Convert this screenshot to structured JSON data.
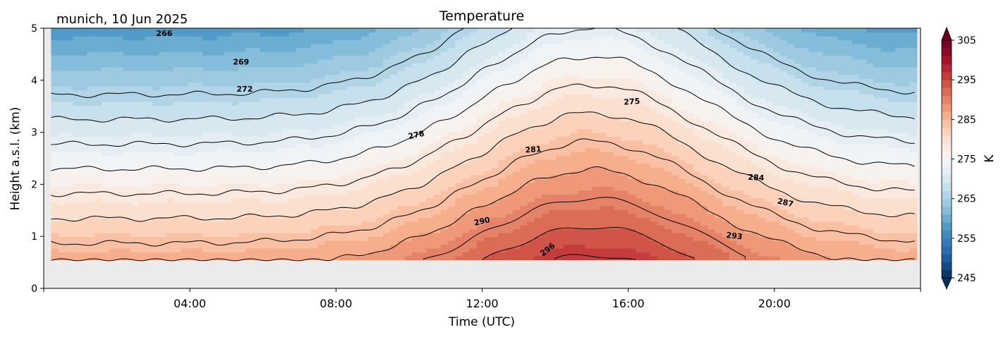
{
  "chart_data": {
    "type": "heatmap",
    "title": "Temperature",
    "subtitle": "munich, 10 Jun 2025",
    "xlabel": "Time (UTC)",
    "ylabel": "Height a.s.l. (km)",
    "x_unit": "hours UTC",
    "xlim": [
      0,
      24
    ],
    "ylim": [
      0,
      5
    ],
    "x_ticks": [
      {
        "value": 4,
        "label": "04:00"
      },
      {
        "value": 8,
        "label": "08:00"
      },
      {
        "value": 12,
        "label": "12:00"
      },
      {
        "value": 16,
        "label": "16:00"
      },
      {
        "value": 20,
        "label": "20:00"
      }
    ],
    "y_ticks": [
      {
        "value": 0,
        "label": "0"
      },
      {
        "value": 1,
        "label": "1"
      },
      {
        "value": 2,
        "label": "2"
      },
      {
        "value": 3,
        "label": "3"
      },
      {
        "value": 4,
        "label": "4"
      },
      {
        "value": 5,
        "label": "5"
      }
    ],
    "data_height_range_km": [
      0.55,
      5.0
    ],
    "data_time_range_h": [
      0.2,
      23.9
    ],
    "colormap": "RdBu_r",
    "colorbar": {
      "label": "K",
      "min": 245,
      "max": 305,
      "extend": "both",
      "ticks": [
        {
          "value": 245,
          "label": "245"
        },
        {
          "value": 255,
          "label": "255"
        },
        {
          "value": 265,
          "label": "265"
        },
        {
          "value": 275,
          "label": "275"
        },
        {
          "value": 285,
          "label": "285"
        },
        {
          "value": 295,
          "label": "295"
        },
        {
          "value": 305,
          "label": "305"
        }
      ]
    },
    "contour_levels": [
      {
        "value": 266,
        "label": "266",
        "height_km": 4.85
      },
      {
        "value": 269,
        "label": "269",
        "height_km": 4.35
      },
      {
        "value": 272,
        "label": "272",
        "height_km": 3.82
      },
      {
        "value": 275,
        "label": "275",
        "height_km": 3.3
      },
      {
        "value": 278,
        "label": "278",
        "height_km": 2.82
      },
      {
        "value": 281,
        "label": "281",
        "height_km": 2.3
      },
      {
        "value": 284,
        "label": "284",
        "height_km": 1.75
      },
      {
        "value": 287,
        "label": "287",
        "height_km": 1.2
      },
      {
        "value": 290,
        "label": "290",
        "height_km": 0.75
      },
      {
        "value": 293,
        "label": "293",
        "height_km": 0.55
      },
      {
        "value": 296,
        "label": "296",
        "height_km": 0.55
      }
    ],
    "contour_label_positions": [
      {
        "text": "266",
        "x": 3.3,
        "y": 4.89,
        "angle": 0
      },
      {
        "text": "269",
        "x": 5.4,
        "y": 4.34,
        "angle": 0
      },
      {
        "text": "272",
        "x": 5.5,
        "y": 3.82,
        "angle": 0
      },
      {
        "text": "275",
        "x": 16.1,
        "y": 3.58,
        "angle": -4
      },
      {
        "text": "278",
        "x": 10.2,
        "y": 2.94,
        "angle": -12
      },
      {
        "text": "281",
        "x": 13.4,
        "y": 2.66,
        "angle": -4
      },
      {
        "text": "284",
        "x": 19.5,
        "y": 2.12,
        "angle": 3
      },
      {
        "text": "287",
        "x": 20.3,
        "y": 1.64,
        "angle": 12
      },
      {
        "text": "290",
        "x": 12.0,
        "y": 1.28,
        "angle": -13
      },
      {
        "text": "293",
        "x": 18.9,
        "y": 1.0,
        "angle": 7
      },
      {
        "text": "296",
        "x": 13.8,
        "y": 0.74,
        "angle": -38
      }
    ]
  }
}
